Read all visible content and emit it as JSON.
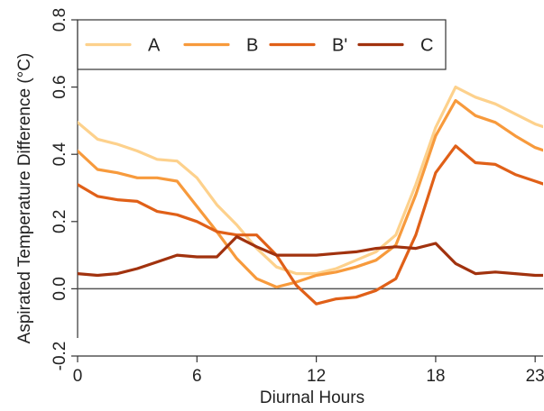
{
  "chart_data": {
    "type": "line",
    "title": "",
    "xlabel": "Diurnal Hours",
    "ylabel": "Aspirated Temperature Difference (°C)",
    "xlim": [
      0,
      23.4
    ],
    "ylim": [
      -0.2,
      0.8
    ],
    "xticks": [
      0,
      6,
      12,
      18,
      23
    ],
    "yticks": [
      -0.2,
      0.0,
      0.2,
      0.4,
      0.6,
      0.8
    ],
    "ytick_labels": [
      "-0.2",
      "0.0",
      "0.2",
      "0.4",
      "0.6",
      "0.8"
    ],
    "zero_line": true,
    "grid": false,
    "legend_position": "top",
    "x": [
      0,
      1,
      2,
      3,
      4,
      5,
      6,
      7,
      8,
      9,
      10,
      11,
      12,
      13,
      14,
      15,
      16,
      17,
      18,
      19,
      20,
      21,
      22,
      23,
      24
    ],
    "series": [
      {
        "name": "A",
        "color": "#fdd18c",
        "values": [
          0.495,
          0.445,
          0.43,
          0.41,
          0.385,
          0.38,
          0.33,
          0.25,
          0.19,
          0.12,
          0.065,
          0.045,
          0.045,
          0.06,
          0.085,
          0.11,
          0.16,
          0.31,
          0.48,
          0.6,
          0.57,
          0.55,
          0.52,
          0.49,
          0.47
        ]
      },
      {
        "name": "B",
        "color": "#f79a3c",
        "values": [
          0.41,
          0.355,
          0.345,
          0.33,
          0.33,
          0.32,
          0.245,
          0.17,
          0.09,
          0.03,
          0.005,
          0.02,
          0.04,
          0.05,
          0.065,
          0.085,
          0.13,
          0.28,
          0.455,
          0.56,
          0.515,
          0.495,
          0.455,
          0.42,
          0.4
        ]
      },
      {
        "name": "B'",
        "color": "#e06018",
        "values": [
          0.31,
          0.275,
          0.265,
          0.26,
          0.23,
          0.22,
          0.2,
          0.17,
          0.16,
          0.16,
          0.1,
          0.01,
          -0.045,
          -0.03,
          -0.025,
          -0.005,
          0.03,
          0.16,
          0.345,
          0.425,
          0.375,
          0.37,
          0.34,
          0.32,
          0.3
        ]
      },
      {
        "name": "C",
        "color": "#a1320e",
        "values": [
          0.045,
          0.04,
          0.045,
          0.06,
          0.08,
          0.1,
          0.095,
          0.095,
          0.155,
          0.125,
          0.1,
          0.1,
          0.1,
          0.105,
          0.11,
          0.12,
          0.125,
          0.12,
          0.135,
          0.075,
          0.045,
          0.05,
          0.045,
          0.04,
          0.04
        ]
      }
    ]
  }
}
